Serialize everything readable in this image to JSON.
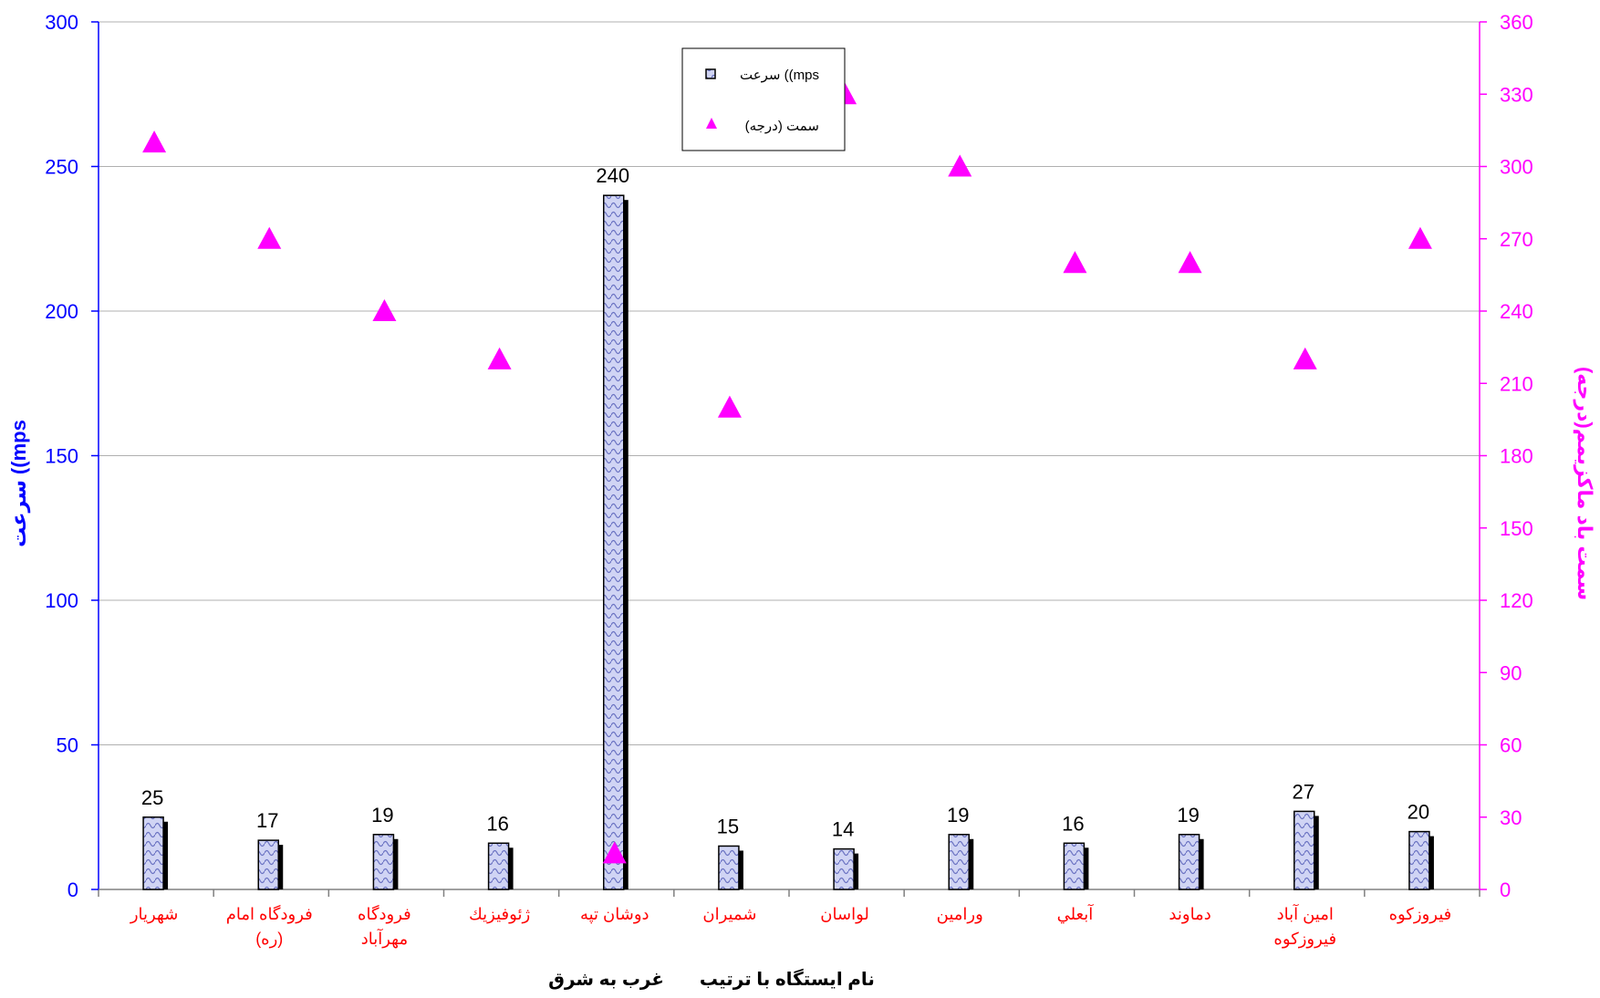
{
  "chart_data": {
    "type": "bar",
    "categories": [
      [
        "شهريار"
      ],
      [
        "فرودگاه امام",
        "(ره)"
      ],
      [
        "فرودگاه",
        "مهرآباد"
      ],
      [
        "ژئوفيزيك"
      ],
      [
        "دوشان تپه"
      ],
      [
        "شميران"
      ],
      [
        "لواسان"
      ],
      [
        "ورامين"
      ],
      [
        "آبعلي"
      ],
      [
        "دماوند"
      ],
      [
        "امين آباد",
        "فيروزكوه"
      ],
      [
        "فيروزكوه"
      ]
    ],
    "series": [
      {
        "name": "سرعت ((mps",
        "type": "bar",
        "axis": "left",
        "values": [
          25,
          17,
          19,
          16,
          240,
          15,
          14,
          19,
          16,
          19,
          27,
          20
        ]
      },
      {
        "name": "سمت (درجه)",
        "type": "scatter",
        "axis": "right",
        "values": [
          310,
          270,
          240,
          220,
          15,
          200,
          330,
          300,
          260,
          260,
          220,
          270
        ]
      }
    ],
    "data_labels": [
      "25",
      "17",
      "19",
      "16",
      "240",
      "15",
      "14",
      "19",
      "16",
      "19",
      "27",
      "20"
    ],
    "y_left": {
      "label": "سرعت ((mps",
      "ylim": [
        0,
        300
      ],
      "ticks": [
        "0",
        "50",
        "100",
        "150",
        "200",
        "250",
        "300"
      ]
    },
    "y_right": {
      "label": "سمت باد ماكزيمم(درجه)",
      "ylim": [
        0,
        360
      ],
      "ticks": [
        "0",
        "30",
        "60",
        "90",
        "120",
        "150",
        "180",
        "210",
        "240",
        "270",
        "300",
        "330",
        "360"
      ]
    },
    "xlabel": "نام ايستگاه با ترتيب       غرب به شرق",
    "legend": {
      "position": "top-center"
    },
    "grid": true,
    "colors": {
      "left_axis": "#0000ff",
      "right_axis": "#ff00ff",
      "category_text": "#ff0000",
      "bar_fill": "#c8cdf0",
      "bar_stroke": "#000000",
      "marker": "#ff00ff"
    }
  }
}
